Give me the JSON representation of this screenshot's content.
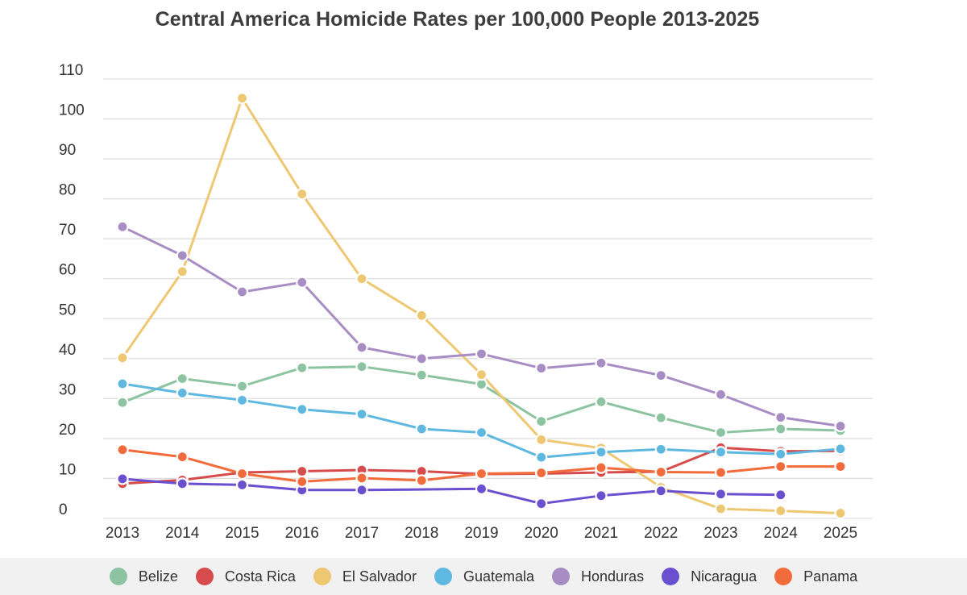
{
  "chart_data": {
    "type": "line",
    "title": "Central America Homicide Rates per 100,000 People 2013-2025",
    "xlabel": "",
    "ylabel": "",
    "ylim": [
      0,
      110
    ],
    "yticks": [
      0,
      10,
      20,
      30,
      40,
      50,
      60,
      70,
      80,
      90,
      100,
      110
    ],
    "grid": true,
    "legend_position": "bottom",
    "categories": [
      "2013",
      "2014",
      "2015",
      "2016",
      "2017",
      "2018",
      "2019",
      "2020",
      "2021",
      "2022",
      "2023",
      "2024",
      "2025"
    ],
    "series": [
      {
        "name": "Belize",
        "color": "#8cc3a0",
        "values": [
          29,
          35,
          33.1,
          37.7,
          38,
          35.9,
          33.6,
          24.3,
          29.2,
          25.2,
          21.5,
          22.4,
          22
        ]
      },
      {
        "name": "Costa Rica",
        "color": "#d64c4c",
        "values": [
          8.7,
          9.6,
          11.5,
          11.8,
          12.1,
          11.8,
          11.1,
          11.2,
          11.5,
          11.7,
          17.7,
          16.8,
          16.9
        ]
      },
      {
        "name": "El Salvador",
        "color": "#eec772",
        "values": [
          40.2,
          61.8,
          105.2,
          81.2,
          60,
          50.8,
          36,
          19.7,
          17.6,
          7.8,
          2.4,
          1.9,
          1.3
        ]
      },
      {
        "name": "Guatemala",
        "color": "#5eb8e0",
        "values": [
          33.7,
          31.4,
          29.6,
          27.3,
          26.1,
          22.4,
          21.5,
          15.3,
          16.6,
          17.3,
          16.6,
          16.1,
          17.4
        ]
      },
      {
        "name": "Honduras",
        "color": "#a88dc4",
        "values": [
          73,
          65.8,
          56.7,
          59.1,
          42.8,
          40,
          41.2,
          37.6,
          38.9,
          35.8,
          31,
          25.3,
          23.1
        ]
      },
      {
        "name": "Nicaragua",
        "color": "#6a4fcf",
        "values": [
          9.9,
          8.7,
          8.4,
          7.1,
          7.1,
          null,
          7.4,
          3.7,
          5.7,
          6.9,
          6.1,
          5.9,
          null
        ]
      },
      {
        "name": "Panama",
        "color": "#f26b3a",
        "values": [
          17.2,
          15.4,
          11.2,
          9.2,
          10.1,
          9.5,
          11.2,
          11.4,
          12.7,
          11.6,
          11.5,
          13,
          13
        ]
      }
    ]
  }
}
